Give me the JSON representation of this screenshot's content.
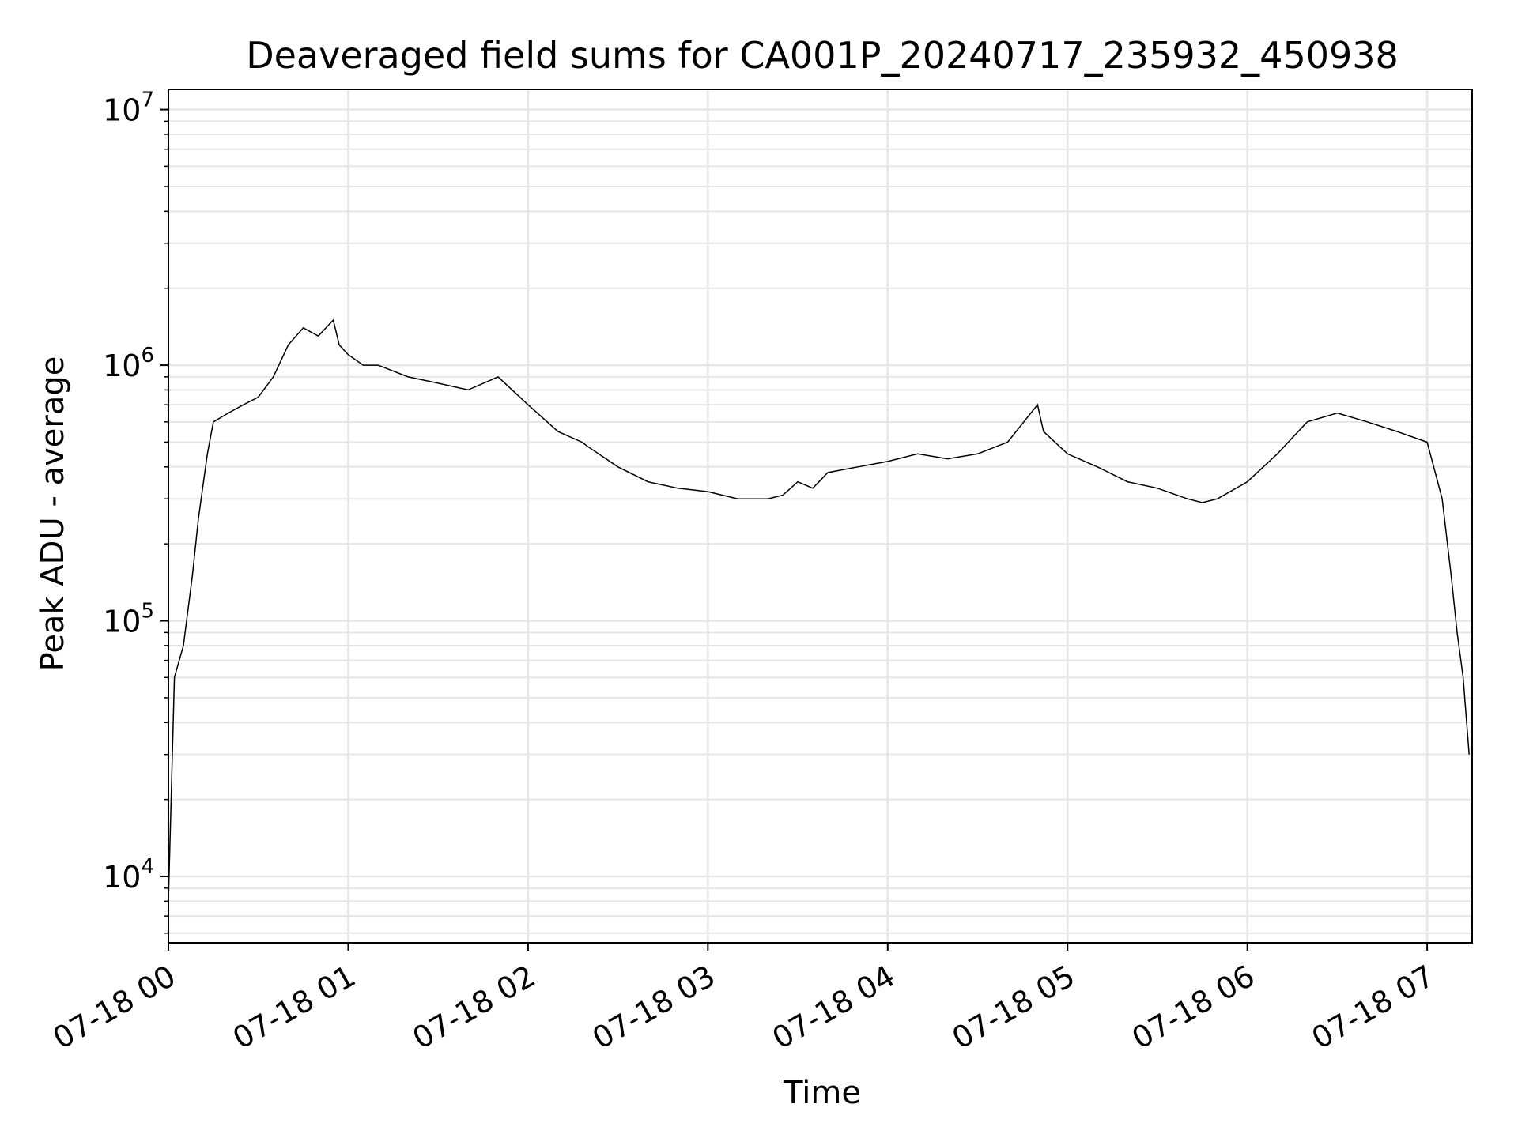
{
  "chart_data": {
    "type": "line",
    "title": "Deaveraged field sums for CA001P_20240717_235932_450938",
    "xlabel": "Time",
    "ylabel": "Peak ADU - average",
    "yscale": "log",
    "ylim": [
      5500,
      12000000
    ],
    "xlim": [
      "2024-07-18 00:00",
      "2024-07-18 07:15"
    ],
    "grid": true,
    "line_color": "#000000",
    "grid_color": "#e6e6e6",
    "x_ticks": [
      {
        "value": "2024-07-18 00:00",
        "label": "07-18 00"
      },
      {
        "value": "2024-07-18 01:00",
        "label": "07-18 01"
      },
      {
        "value": "2024-07-18 02:00",
        "label": "07-18 02"
      },
      {
        "value": "2024-07-18 03:00",
        "label": "07-18 03"
      },
      {
        "value": "2024-07-18 04:00",
        "label": "07-18 04"
      },
      {
        "value": "2024-07-18 05:00",
        "label": "07-18 05"
      },
      {
        "value": "2024-07-18 06:00",
        "label": "07-18 06"
      },
      {
        "value": "2024-07-18 07:00",
        "label": "07-18 07"
      }
    ],
    "y_ticks": [
      {
        "value": 10000,
        "base": "10",
        "exp": "4"
      },
      {
        "value": 100000,
        "base": "10",
        "exp": "5"
      },
      {
        "value": 1000000,
        "base": "10",
        "exp": "6"
      },
      {
        "value": 10000000,
        "base": "10",
        "exp": "7"
      }
    ],
    "series": [
      {
        "x": [
          "2024-07-18 00:00",
          "2024-07-18 00:02",
          "2024-07-18 00:05",
          "2024-07-18 00:08",
          "2024-07-18 00:10",
          "2024-07-18 00:13",
          "2024-07-18 00:15",
          "2024-07-18 00:20",
          "2024-07-18 00:25",
          "2024-07-18 00:30",
          "2024-07-18 00:35",
          "2024-07-18 00:40",
          "2024-07-18 00:45",
          "2024-07-18 00:50",
          "2024-07-18 00:55",
          "2024-07-18 00:57",
          "2024-07-18 01:00",
          "2024-07-18 01:05",
          "2024-07-18 01:10",
          "2024-07-18 01:20",
          "2024-07-18 01:30",
          "2024-07-18 01:40",
          "2024-07-18 01:50",
          "2024-07-18 02:00",
          "2024-07-18 02:10",
          "2024-07-18 02:18",
          "2024-07-18 02:20",
          "2024-07-18 02:30",
          "2024-07-18 02:40",
          "2024-07-18 02:50",
          "2024-07-18 03:00",
          "2024-07-18 03:10",
          "2024-07-18 03:20",
          "2024-07-18 03:25",
          "2024-07-18 03:30",
          "2024-07-18 03:35",
          "2024-07-18 03:40",
          "2024-07-18 03:50",
          "2024-07-18 04:00",
          "2024-07-18 04:10",
          "2024-07-18 04:20",
          "2024-07-18 04:30",
          "2024-07-18 04:40",
          "2024-07-18 04:50",
          "2024-07-18 04:52",
          "2024-07-18 05:00",
          "2024-07-18 05:10",
          "2024-07-18 05:20",
          "2024-07-18 05:30",
          "2024-07-18 05:40",
          "2024-07-18 05:45",
          "2024-07-18 05:50",
          "2024-07-18 06:00",
          "2024-07-18 06:10",
          "2024-07-18 06:20",
          "2024-07-18 06:30",
          "2024-07-18 06:40",
          "2024-07-18 06:50",
          "2024-07-18 07:00",
          "2024-07-18 07:05",
          "2024-07-18 07:08",
          "2024-07-18 07:10",
          "2024-07-18 07:12",
          "2024-07-18 07:14"
        ],
        "y": [
          8000,
          60000,
          80000,
          150000,
          250000,
          450000,
          600000,
          650000,
          700000,
          750000,
          900000,
          1200000,
          1400000,
          1300000,
          1500000,
          1200000,
          1100000,
          1000000,
          1000000,
          900000,
          850000,
          800000,
          900000,
          700000,
          550000,
          500000,
          480000,
          400000,
          350000,
          330000,
          320000,
          300000,
          300000,
          310000,
          350000,
          330000,
          380000,
          400000,
          420000,
          450000,
          430000,
          450000,
          500000,
          700000,
          550000,
          450000,
          400000,
          350000,
          330000,
          300000,
          290000,
          300000,
          350000,
          450000,
          600000,
          650000,
          600000,
          550000,
          500000,
          300000,
          150000,
          90000,
          60000,
          30000
        ]
      }
    ]
  }
}
